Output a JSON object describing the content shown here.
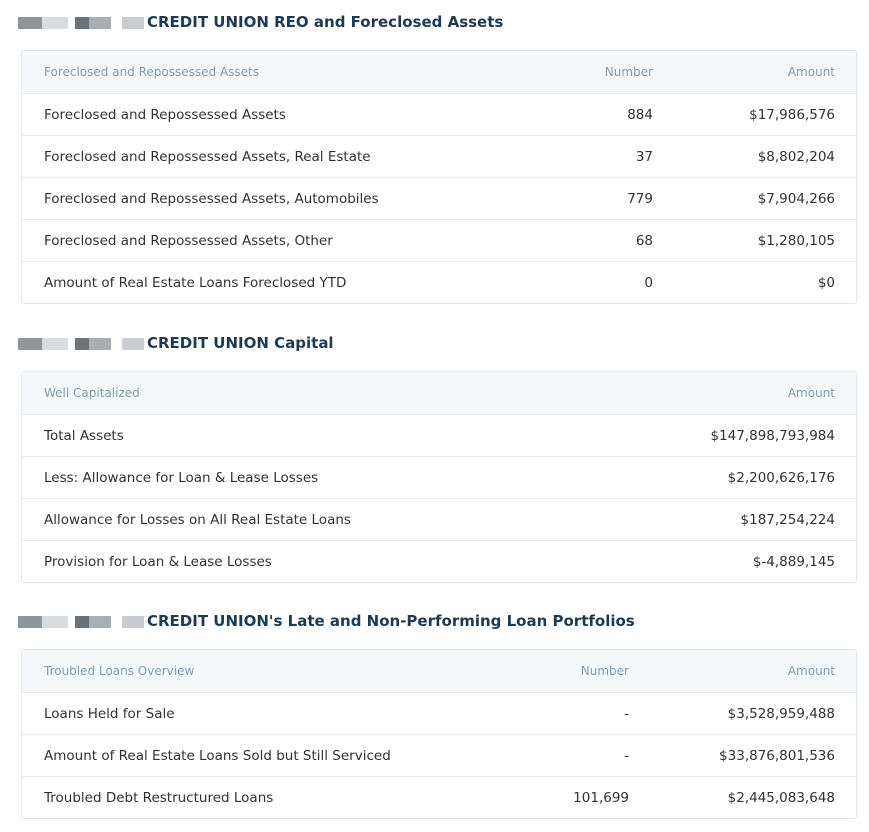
{
  "sections": [
    {
      "title": "CREDIT UNION REO and Foreclosed Assets",
      "table": {
        "headers": [
          "Foreclosed and Repossessed Assets",
          "Number",
          "Amount"
        ],
        "rows": [
          [
            "Foreclosed and Repossessed Assets",
            "884",
            "$17,986,576"
          ],
          [
            "Foreclosed and Repossessed Assets, Real Estate",
            "37",
            "$8,802,204"
          ],
          [
            "Foreclosed and Repossessed Assets, Automobiles",
            "779",
            "$7,904,266"
          ],
          [
            "Foreclosed and Repossessed Assets, Other",
            "68",
            "$1,280,105"
          ],
          [
            "Amount of Real Estate Loans Foreclosed YTD",
            "0",
            "$0"
          ]
        ]
      }
    },
    {
      "title": "CREDIT UNION Capital",
      "table": {
        "headers": [
          "Well Capitalized",
          "Amount"
        ],
        "rows": [
          [
            "Total Assets",
            "$147,898,793,984"
          ],
          [
            "Less: Allowance for Loan & Lease Losses",
            "$2,200,626,176"
          ],
          [
            "Allowance for Losses on All Real Estate Loans",
            "$187,254,224"
          ],
          [
            "Provision for Loan & Lease Losses",
            "$-4,889,145"
          ]
        ]
      }
    },
    {
      "title": "CREDIT UNION's Late and Non-Performing Loan Portfolios",
      "table": {
        "headers": [
          "Troubled Loans Overview",
          "Number",
          "Amount"
        ],
        "rows": [
          [
            "Loans Held for Sale",
            "-",
            "$3,528,959,488"
          ],
          [
            "Amount of Real Estate Loans Sold but Still Serviced",
            "-",
            "$33,876,801,536"
          ],
          [
            "Troubled Debt Restructured Loans",
            "101,699",
            "$2,445,083,648"
          ]
        ]
      }
    }
  ]
}
